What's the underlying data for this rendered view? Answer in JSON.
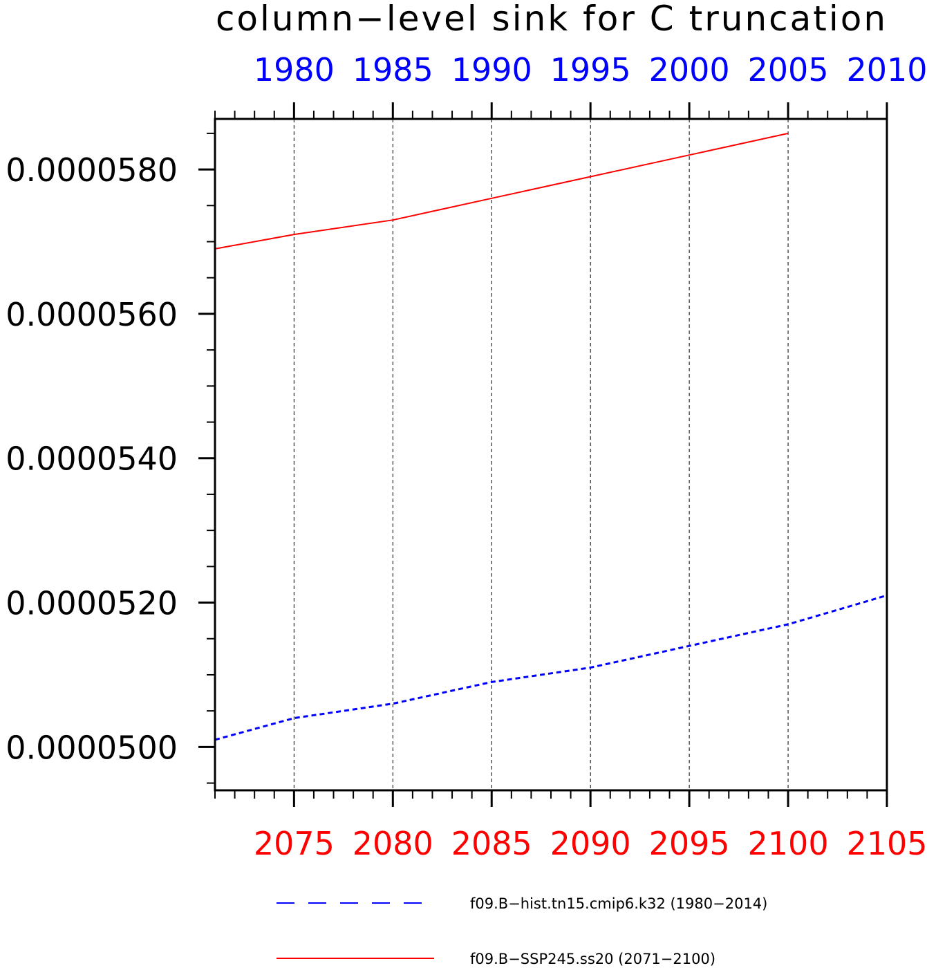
{
  "chart_data": {
    "type": "line",
    "title": "column−level sink for C truncation",
    "ylim": [
      4.94e-05,
      5.87e-05
    ],
    "y_ticks": [
      5e-05,
      5.2e-05,
      5.4e-05,
      5.6e-05,
      5.8e-05
    ],
    "y_tick_labels": [
      "0.0000500",
      "0.0000520",
      "0.0000540",
      "0.0000560",
      "0.0000580"
    ],
    "y_minor_step": 5e-07,
    "grid_x": true,
    "top_axis": {
      "color": "#0000ff",
      "range": [
        1976,
        2010
      ],
      "major_ticks": [
        1980,
        1985,
        1990,
        1995,
        2000,
        2005,
        2010
      ],
      "tick_labels": [
        "1980",
        "1985",
        "1990",
        "1995",
        "2000",
        "2005",
        "2010"
      ]
    },
    "bottom_axis": {
      "color": "#ff0000",
      "range": [
        2071,
        2105
      ],
      "major_ticks": [
        2075,
        2080,
        2085,
        2090,
        2095,
        2100,
        2105
      ],
      "tick_labels": [
        "2075",
        "2080",
        "2085",
        "2090",
        "2095",
        "2100",
        "2105"
      ]
    },
    "series": [
      {
        "name": "f09.B−hist.tn15.cmip6.k32 (1980−2014)",
        "axis": "top",
        "color": "#0000ff",
        "dash": "dashed",
        "x": [
          1976,
          1980,
          1985,
          1990,
          1995,
          2000,
          2005,
          2010
        ],
        "y": [
          5.01e-05,
          5.04e-05,
          5.06e-05,
          5.09e-05,
          5.11e-05,
          5.14e-05,
          5.17e-05,
          5.21e-05
        ]
      },
      {
        "name": "f09.B−SSP245.ss20 (2071−2100)",
        "axis": "bottom",
        "color": "#ff0000",
        "dash": "solid",
        "x": [
          2071,
          2075,
          2080,
          2085,
          2090,
          2095,
          2100
        ],
        "y": [
          5.69e-05,
          5.71e-05,
          5.73e-05,
          5.76e-05,
          5.79e-05,
          5.82e-05,
          5.85e-05
        ]
      }
    ],
    "legend_position": "bottom"
  }
}
